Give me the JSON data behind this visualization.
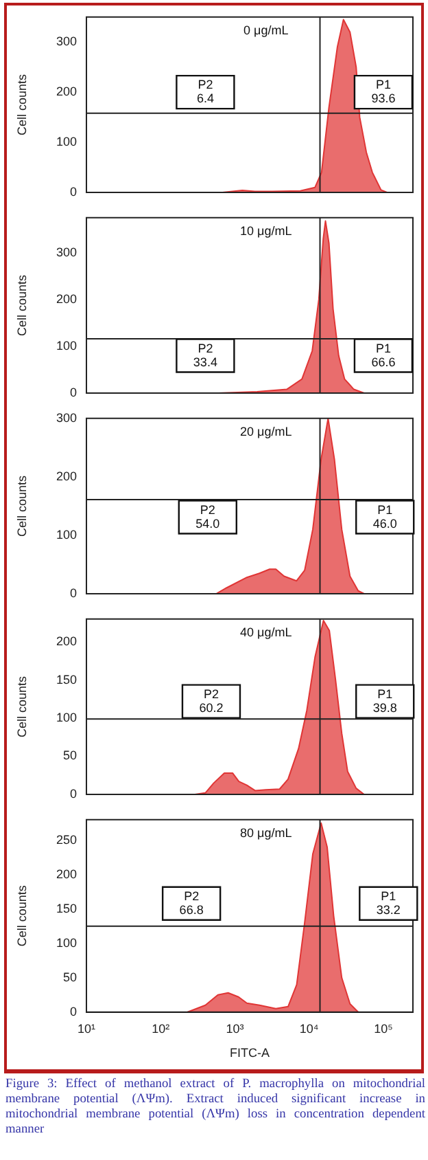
{
  "chart_data": [
    {
      "type": "area",
      "title": "0 μg/mL",
      "ylabel": "Cell counts",
      "log": "x",
      "tick_labels": "y",
      "xlim": [
        10,
        250000
      ],
      "xticks": [
        {
          "value": 10,
          "label": null
        },
        {
          "value": 100,
          "label": null
        },
        {
          "value": 1000,
          "label": null
        },
        {
          "value": 10000,
          "label": null
        },
        {
          "value": 100000,
          "label": null
        }
      ],
      "ylim": [
        0,
        350
      ],
      "yticks": [
        0,
        100,
        200,
        300
      ],
      "x": [
        680,
        1260,
        1860,
        3160,
        7600,
        12000,
        14700,
        18500,
        24000,
        29000,
        35500,
        43000,
        48000,
        59000,
        71000,
        93000,
        112000
      ],
      "series": [
        {
          "color": "#e03535",
          "values": [
            0,
            4,
            2,
            2,
            3,
            10,
            40,
            170,
            290,
            345,
            320,
            250,
            150,
            80,
            40,
            5,
            0
          ]
        }
      ],
      "ref_lines": [
        {
          "axis": "x",
          "value": 14000
        },
        {
          "axis": "y",
          "value": 158
        }
      ],
      "annotations": [
        {
          "text": "P2\n6.4",
          "x": 400,
          "y": 200
        },
        {
          "text": "P1\n93.6",
          "x": 100000,
          "y": 200
        }
      ]
    },
    {
      "type": "area",
      "title": "10 μg/mL",
      "ylabel": "Cell counts",
      "log": "x",
      "tick_labels": "y",
      "xlim": [
        10,
        250000
      ],
      "xticks": [
        {
          "value": 10,
          "label": null
        },
        {
          "value": 100,
          "label": null
        },
        {
          "value": 1000,
          "label": null
        },
        {
          "value": 10000,
          "label": null
        },
        {
          "value": 100000,
          "label": null
        }
      ],
      "ylim": [
        0,
        375
      ],
      "yticks": [
        0,
        100,
        200,
        300
      ],
      "x": [
        600,
        2000,
        5000,
        8000,
        11000,
        13500,
        15500,
        16600,
        18500,
        21000,
        25000,
        30000,
        40000,
        55000
      ],
      "series": [
        {
          "color": "#e03535",
          "values": [
            0,
            3,
            8,
            30,
            90,
            200,
            330,
            368,
            320,
            180,
            80,
            30,
            8,
            0
          ]
        }
      ],
      "ref_lines": [
        {
          "axis": "x",
          "value": 14000
        },
        {
          "axis": "y",
          "value": 116
        }
      ],
      "annotations": [
        {
          "text": "P2\n33.4",
          "x": 400,
          "y": 80
        },
        {
          "text": "P1\n66.6",
          "x": 100000,
          "y": 80
        }
      ]
    },
    {
      "type": "area",
      "title": "20 μg/mL",
      "ylabel": "Cell counts",
      "log": "x",
      "tick_labels": "y",
      "xlim": [
        10,
        250000
      ],
      "xticks": [
        {
          "value": 10,
          "label": null
        },
        {
          "value": 100,
          "label": null
        },
        {
          "value": 1000,
          "label": null
        },
        {
          "value": 10000,
          "label": null
        },
        {
          "value": 100000,
          "label": null
        }
      ],
      "ylim": [
        0,
        300
      ],
      "yticks": [
        0,
        100,
        200,
        300
      ],
      "x": [
        560,
        770,
        1450,
        2140,
        2940,
        3560,
        4600,
        6750,
        8700,
        11200,
        14500,
        18000,
        21900,
        27500,
        35500,
        45800,
        55000
      ],
      "series": [
        {
          "color": "#e03535",
          "values": [
            0,
            10,
            28,
            35,
            42,
            42,
            30,
            22,
            40,
            110,
            230,
            300,
            230,
            110,
            30,
            5,
            0
          ]
        }
      ],
      "ref_lines": [
        {
          "axis": "x",
          "value": 14000
        },
        {
          "axis": "y",
          "value": 161
        }
      ],
      "annotations": [
        {
          "text": "P2\n54.0",
          "x": 430,
          "y": 131
        },
        {
          "text": "P1\n46.0",
          "x": 105000,
          "y": 131
        }
      ]
    },
    {
      "type": "area",
      "title": "40 μg/mL",
      "ylabel": "Cell counts",
      "log": "x",
      "tick_labels": "y",
      "xlim": [
        10,
        250000
      ],
      "xticks": [
        {
          "value": 10,
          "label": null
        },
        {
          "value": 100,
          "label": null
        },
        {
          "value": 1000,
          "label": null
        },
        {
          "value": 10000,
          "label": null
        },
        {
          "value": 100000,
          "label": null
        }
      ],
      "ylim": [
        0,
        230
      ],
      "yticks": [
        0,
        50,
        100,
        150,
        200
      ],
      "x": [
        290,
        400,
        520,
        720,
        930,
        1130,
        1450,
        1870,
        2600,
        4000,
        5200,
        7200,
        9300,
        12000,
        15600,
        18700,
        22700,
        27500,
        33000,
        43000,
        55000
      ],
      "series": [
        {
          "color": "#e03535",
          "values": [
            0,
            2,
            15,
            28,
            28,
            17,
            12,
            5,
            6,
            7,
            20,
            60,
            110,
            180,
            228,
            215,
            150,
            80,
            30,
            8,
            0
          ]
        }
      ],
      "ref_lines": [
        {
          "axis": "x",
          "value": 14000
        },
        {
          "axis": "y",
          "value": 99
        }
      ],
      "annotations": [
        {
          "text": "P2\n60.2",
          "x": 480,
          "y": 122
        },
        {
          "text": "P1\n39.8",
          "x": 105000,
          "y": 122
        }
      ]
    },
    {
      "type": "area",
      "title": "80 μg/mL",
      "xlabel": "FITC-A",
      "ylabel": "Cell counts",
      "log": "x",
      "xlim": [
        10,
        250000
      ],
      "xticks": [
        {
          "value": 10,
          "label": "10¹"
        },
        {
          "value": 100,
          "label": "10²"
        },
        {
          "value": 1000,
          "label": "10³"
        },
        {
          "value": 10000,
          "label": "10⁴"
        },
        {
          "value": 100000,
          "label": "10⁵"
        }
      ],
      "ylim": [
        0,
        280
      ],
      "yticks": [
        0,
        50,
        100,
        150,
        200,
        250
      ],
      "x": [
        230,
        400,
        590,
        810,
        1120,
        1450,
        2150,
        3560,
        5200,
        6800,
        8700,
        11200,
        14500,
        17500,
        21400,
        27500,
        35500,
        45800
      ],
      "series": [
        {
          "color": "#e03535",
          "values": [
            0,
            10,
            25,
            28,
            22,
            13,
            10,
            5,
            8,
            40,
            130,
            230,
            275,
            240,
            140,
            50,
            12,
            0
          ]
        }
      ],
      "ref_lines": [
        {
          "axis": "x",
          "value": 14000
        },
        {
          "axis": "y",
          "value": 125
        }
      ],
      "annotations": [
        {
          "text": "P2\n66.8",
          "x": 260,
          "y": 158
        },
        {
          "text": "P1\n33.2",
          "x": 117000,
          "y": 158
        },
        "Figure 3: Effect of methanol extract of P. macrophylla on mitochondrial membrane potential (ΛΨm). Extract induced significant increase in mitochondrial membrane potential (ΛΨm) loss in concentration dependent manner"
      ]
    }
  ]
}
